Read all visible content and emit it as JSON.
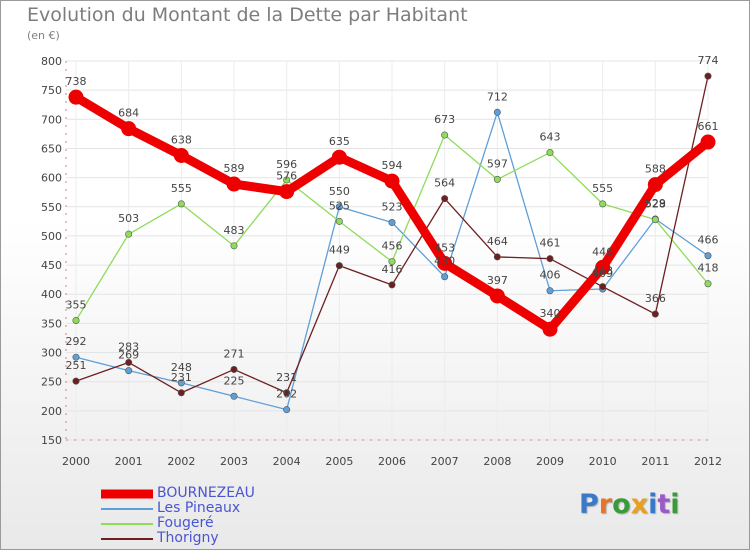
{
  "title": "Evolution du Montant de la Dette par Habitant",
  "subtitle": "(en €)",
  "logo": {
    "text": "Proxiti",
    "letter_colors": [
      "#3a78c8",
      "#e8742a",
      "#3a9a3a",
      "#e8a020",
      "#3a78c8",
      "#9a5ac8",
      "#3a9a3a"
    ]
  },
  "chart_data": {
    "type": "line",
    "x": [
      "2000",
      "2001",
      "2002",
      "2003",
      "2004",
      "2005",
      "2006",
      "2007",
      "2008",
      "2009",
      "2010",
      "2011",
      "2012"
    ],
    "ylim": [
      150,
      800
    ],
    "yticks": [
      150,
      200,
      250,
      300,
      350,
      400,
      450,
      500,
      550,
      600,
      650,
      700,
      750,
      800
    ],
    "series": [
      {
        "name": "BOURNEZEAU",
        "color": "#ee0000",
        "values": [
          738,
          684,
          638,
          589,
          576,
          635,
          594,
          453,
          397,
          340,
          446,
          588,
          661
        ]
      },
      {
        "name": "Les Pineaux",
        "color": "#5f9fd8",
        "values": [
          292,
          269,
          248,
          225,
          202,
          550,
          523,
          430,
          712,
          406,
          409,
          529,
          466
        ]
      },
      {
        "name": "Fougeré",
        "color": "#8edc5a",
        "values": [
          355,
          503,
          555,
          483,
          596,
          525,
          456,
          673,
          597,
          643,
          555,
          528,
          418
        ]
      },
      {
        "name": "Thorigny",
        "color": "#6e2020",
        "values": [
          251,
          283,
          231,
          271,
          231,
          449,
          416,
          564,
          464,
          461,
          413,
          366,
          774
        ]
      }
    ]
  }
}
